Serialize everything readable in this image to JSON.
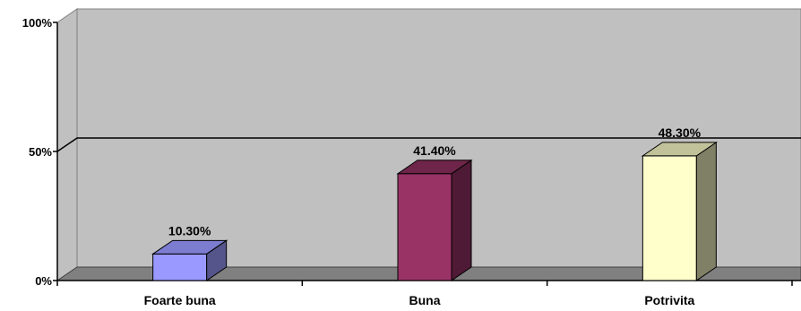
{
  "chart_data": {
    "type": "bar",
    "style": "3d-column",
    "categories": [
      "Foarte buna",
      "Buna",
      "Potrivita"
    ],
    "values": [
      10.3,
      41.4,
      48.3
    ],
    "data_labels": [
      "10.30%",
      "41.40%",
      "48.30%"
    ],
    "ylim": [
      0,
      100
    ],
    "yticks": [
      "0%",
      "50%",
      "100%"
    ],
    "ytick_values": [
      0,
      50,
      100
    ],
    "grid": true,
    "legend": "none",
    "title": "",
    "xlabel": "",
    "ylabel": "",
    "colors": {
      "wall": "#c0c0c0",
      "floor": "#808080",
      "bars": [
        {
          "front": "#9999ff",
          "side": "#55558c",
          "top": "#7c7cd0"
        },
        {
          "front": "#993366",
          "side": "#4f1a35",
          "top": "#6e2549"
        },
        {
          "front": "#ffffcc",
          "side": "#808066",
          "top": "#c2c29a"
        }
      ]
    }
  }
}
